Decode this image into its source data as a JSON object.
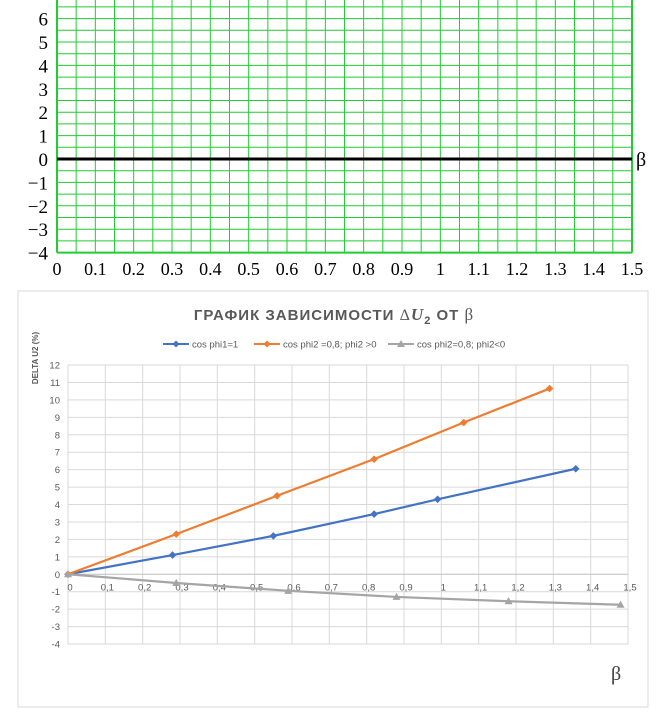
{
  "chart_data": [
    {
      "type": "grid",
      "x_axis_label": "β",
      "xlim": [
        0,
        1.5
      ],
      "ylim": [
        -4,
        6
      ],
      "x_ticks": [
        "0",
        "0.1",
        "0.2",
        "0.3",
        "0.4",
        "0.5",
        "0.6",
        "0.7",
        "0.8",
        "0.9",
        "1",
        "1.1",
        "1.2",
        "1.3",
        "1.4",
        "1.5"
      ],
      "y_ticks": [
        "6",
        "5",
        "4",
        "3",
        "2",
        "1",
        "0",
        "−1",
        "−2",
        "−3",
        "−4"
      ],
      "grid": true,
      "colors": {
        "grid": "#22cc33",
        "axis": "#000000"
      }
    },
    {
      "type": "line",
      "title_prefix": "ГРАФИК ЗАВИСИМОСТИ ",
      "title_delta": "Δ",
      "title_var": "U",
      "title_sub": "2",
      "title_suffix": " ОТ ",
      "title_beta": "β",
      "ylabel": "DELTA U2 (%)",
      "xlabel": "β",
      "xlim": [
        0,
        1.5
      ],
      "ylim": [
        -4,
        12
      ],
      "x_ticks": [
        "0",
        "0,1",
        "0,2",
        "0,3",
        "0,4",
        "0,5",
        "0,6",
        "0,7",
        "0,8",
        "0,9",
        "1",
        "1,1",
        "1,2",
        "1,3",
        "1,4",
        "1,5"
      ],
      "y_ticks": [
        "12",
        "11",
        "10",
        "9",
        "8",
        "7",
        "6",
        "5",
        "4",
        "3",
        "2",
        "1",
        "0",
        "-1",
        "-2",
        "-3",
        "-4"
      ],
      "legend_position": "top",
      "grid": true,
      "series": [
        {
          "name": "cos phi1=1",
          "color": "#4472c4",
          "marker": "diamond",
          "x": [
            0,
            0.28,
            0.55,
            0.82,
            0.99,
            1.36
          ],
          "y": [
            0,
            1.1,
            2.2,
            3.45,
            4.3,
            6.05
          ]
        },
        {
          "name": "cos phi2 =0,8; phi2 >0",
          "color": "#ed7d31",
          "marker": "diamond",
          "x": [
            0,
            0.29,
            0.56,
            0.82,
            1.06,
            1.29
          ],
          "y": [
            0,
            2.3,
            4.5,
            6.6,
            8.7,
            10.65
          ]
        },
        {
          "name": "cos phi2=0,8; phi2<0",
          "color": "#a5a5a5",
          "marker": "triangle",
          "x": [
            0,
            0.29,
            0.59,
            0.88,
            1.18,
            1.48
          ],
          "y": [
            0,
            -0.5,
            -0.95,
            -1.3,
            -1.55,
            -1.75
          ]
        }
      ]
    }
  ]
}
